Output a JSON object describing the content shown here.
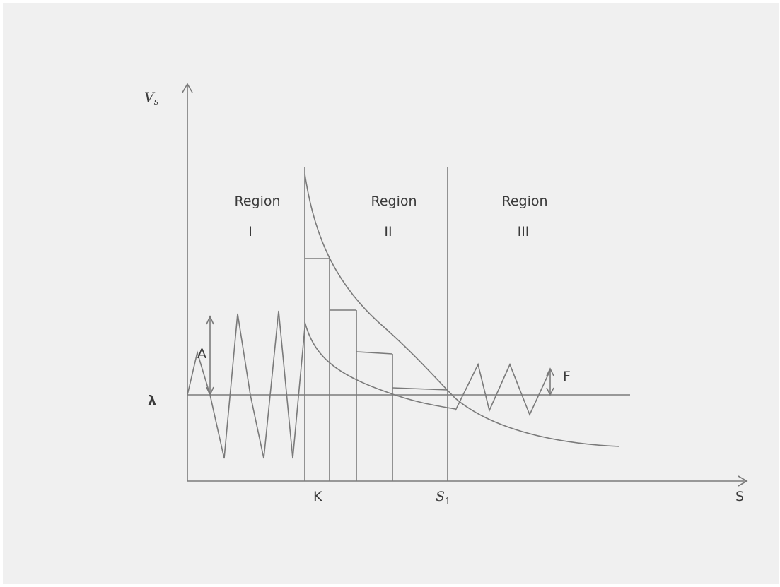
{
  "axes": {
    "y_label_main": "V",
    "y_label_sub": "s",
    "x_label": "S",
    "lambda_label": "λ",
    "k_label": "K",
    "s1_main": "S",
    "s1_sub": "1"
  },
  "regions": [
    {
      "word": "Region",
      "numeral": "I"
    },
    {
      "word": "Region",
      "numeral": "II"
    },
    {
      "word": "Region",
      "numeral": "III"
    }
  ],
  "annotations": {
    "amplitude_label": "A",
    "f_label": "F"
  },
  "colors": {
    "background": "#f0f0f0",
    "line": "#7a7a7a",
    "text": "#3a3a3a"
  }
}
